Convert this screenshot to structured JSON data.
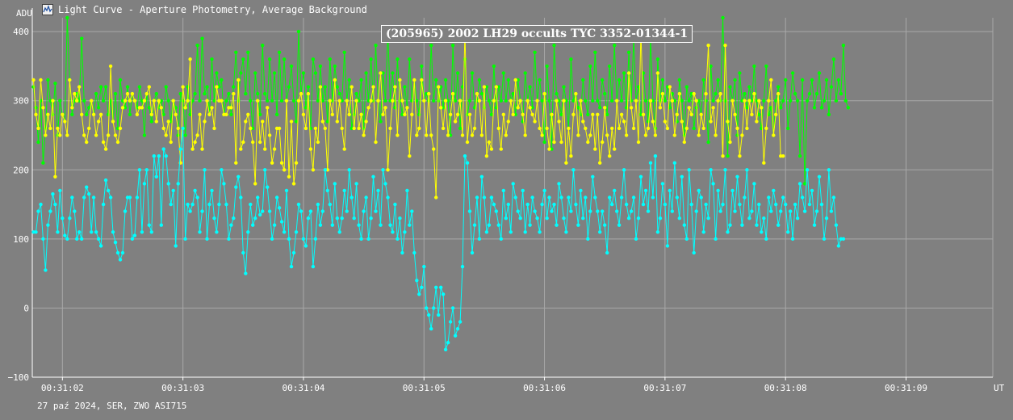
{
  "window": {
    "title": "Light Curve - Aperture Photometry, Average Background",
    "icon": "light-curve-app-icon"
  },
  "footer": "27 paź 2024, SER, ZWO ASI715",
  "chart_data": {
    "type": "line",
    "title": "(205965) 2002 LH29 occults TYC 3352-01344-1",
    "ylabel": "ADU",
    "xlabel": "UT",
    "ylim": [
      -100,
      420
    ],
    "xlim": [
      1.75,
      9.72
    ],
    "yticks": [
      400,
      300,
      200,
      100,
      0,
      -100
    ],
    "xticks": [
      {
        "value": 2,
        "label": "00:31:02"
      },
      {
        "value": 3,
        "label": "00:31:03"
      },
      {
        "value": 4,
        "label": "00:31:04"
      },
      {
        "value": 5,
        "label": "00:31:05"
      },
      {
        "value": 6,
        "label": "00:31:06"
      },
      {
        "value": 7,
        "label": "00:31:07"
      },
      {
        "value": 8,
        "label": "00:31:08"
      },
      {
        "value": 9,
        "label": "00:31:09"
      }
    ],
    "grid": true,
    "x_units": "seconds after 00:31:00 UT",
    "x_start": 1.76,
    "x_step": 0.02,
    "series": [
      {
        "color": "#00ff00",
        "values": [
          320,
          290,
          240,
          300,
          210,
          260,
          330,
          300,
          280,
          325,
          250,
          300,
          280,
          270,
          420,
          330,
          280,
          300,
          310,
          300,
          390,
          300,
          280,
          290,
          300,
          280,
          310,
          290,
          320,
          300,
          320,
          280,
          300,
          270,
          310,
          260,
          330,
          300,
          290,
          320,
          280,
          310,
          300,
          290,
          320,
          300,
          250,
          310,
          290,
          270,
          300,
          310,
          290,
          300,
          280,
          320,
          300,
          270,
          300,
          290,
          250,
          310,
          300,
          250,
          320,
          280,
          300,
          310,
          380,
          300,
          390,
          310,
          320,
          280,
          360,
          300,
          340,
          320,
          330,
          280,
          300,
          310,
          280,
          320,
          370,
          300,
          340,
          360,
          310,
          370,
          300,
          260,
          340,
          310,
          280,
          380,
          310,
          300,
          360,
          300,
          340,
          280,
          370,
          300,
          360,
          300,
          320,
          350,
          300,
          270,
          400,
          310,
          340,
          290,
          320,
          260,
          360,
          340,
          300,
          350,
          300,
          320,
          270,
          360,
          300,
          350,
          320,
          310,
          300,
          370,
          300,
          330,
          260,
          280,
          310,
          300,
          330,
          260,
          340,
          300,
          360,
          300,
          380,
          300,
          270,
          340,
          300,
          400,
          300,
          340,
          290,
          360,
          300,
          280,
          320,
          290,
          360,
          300,
          330,
          300,
          280,
          350,
          300,
          310,
          300,
          380,
          300,
          330,
          300,
          320,
          290,
          330,
          300,
          250,
          380,
          300,
          340,
          260,
          320,
          360,
          280,
          300,
          340,
          290,
          300,
          330,
          310,
          290,
          320,
          300,
          280,
          350,
          290,
          320,
          300,
          340,
          300,
          330,
          300,
          310,
          280,
          330,
          300,
          270,
          340,
          300,
          320,
          290,
          370,
          300,
          330,
          300,
          240,
          350,
          300,
          230,
          380,
          310,
          300,
          280,
          320,
          300,
          260,
          360,
          300,
          310,
          290,
          280,
          330,
          300,
          280,
          350,
          300,
          370,
          300,
          290,
          330,
          310,
          280,
          350,
          300,
          380,
          300,
          330,
          300,
          340,
          290,
          370,
          300,
          390,
          300,
          320,
          280,
          340,
          300,
          270,
          390,
          300,
          260,
          360,
          300,
          330,
          300,
          320,
          290,
          310,
          300,
          270,
          330,
          300,
          250,
          320,
          300,
          310,
          260,
          290,
          300,
          280,
          330,
          300,
          240,
          350,
          300,
          310,
          330,
          300,
          420,
          300,
          220,
          320,
          300,
          330,
          250,
          340,
          300,
          310,
          290,
          320,
          300,
          350,
          300,
          280,
          260,
          300,
          350,
          280,
          290,
          250,
          300,
          320,
          290,
          300,
          330,
          260,
          300,
          340,
          310,
          300,
          220,
          330,
          180,
          300,
          310,
          330,
          290,
          310,
          340,
          290,
          300,
          330,
          280,
          320,
          360,
          300,
          330,
          310,
          380,
          300,
          290
        ]
      },
      {
        "color": "#ffff00",
        "values": [
          330,
          280,
          260,
          330,
          290,
          250,
          280,
          260,
          300,
          190,
          260,
          250,
          280,
          270,
          250,
          330,
          290,
          310,
          300,
          320,
          280,
          250,
          240,
          260,
          300,
          280,
          250,
          270,
          280,
          240,
          230,
          250,
          350,
          270,
          250,
          240,
          260,
          290,
          300,
          310,
          300,
          310,
          300,
          280,
          290,
          290,
          300,
          310,
          320,
          280,
          300,
          270,
          300,
          290,
          260,
          250,
          270,
          240,
          300,
          280,
          260,
          210,
          320,
          290,
          300,
          360,
          230,
          240,
          250,
          280,
          230,
          270,
          300,
          280,
          290,
          260,
          320,
          300,
          300,
          280,
          280,
          290,
          290,
          310,
          210,
          330,
          230,
          240,
          270,
          280,
          260,
          240,
          180,
          300,
          240,
          270,
          230,
          290,
          250,
          210,
          230,
          260,
          260,
          210,
          200,
          300,
          190,
          270,
          180,
          210,
          300,
          310,
          280,
          260,
          310,
          230,
          200,
          260,
          240,
          320,
          270,
          260,
          200,
          300,
          280,
          330,
          270,
          300,
          260,
          230,
          300,
          280,
          320,
          260,
          300,
          260,
          280,
          250,
          270,
          290,
          300,
          320,
          240,
          300,
          340,
          280,
          290,
          200,
          260,
          300,
          320,
          250,
          330,
          300,
          280,
          290,
          220,
          280,
          330,
          250,
          260,
          330,
          300,
          250,
          310,
          250,
          230,
          160,
          320,
          290,
          260,
          300,
          250,
          280,
          310,
          270,
          280,
          300,
          250,
          400,
          240,
          280,
          250,
          260,
          310,
          300,
          250,
          320,
          220,
          240,
          230,
          300,
          320,
          260,
          230,
          280,
          250,
          270,
          300,
          280,
          330,
          290,
          300,
          280,
          250,
          300,
          290,
          280,
          270,
          300,
          260,
          250,
          310,
          260,
          230,
          280,
          240,
          300,
          270,
          240,
          300,
          210,
          260,
          220,
          280,
          310,
          250,
          300,
          270,
          260,
          240,
          250,
          280,
          230,
          280,
          210,
          240,
          290,
          250,
          220,
          260,
          230,
          300,
          260,
          280,
          270,
          250,
          340,
          290,
          260,
          300,
          240,
          400,
          280,
          250,
          260,
          300,
          270,
          250,
          340,
          290,
          310,
          270,
          260,
          320,
          300,
          250,
          280,
          310,
          270,
          240,
          260,
          290,
          280,
          310,
          300,
          250,
          280,
          260,
          310,
          380,
          270,
          290,
          250,
          300,
          310,
          220,
          380,
          270,
          240,
          300,
          280,
          260,
          220,
          250,
          300,
          260,
          300,
          280,
          310,
          270,
          300,
          290,
          210,
          260,
          300,
          330,
          250,
          280,
          310,
          220,
          220
        ]
      },
      {
        "color": "#00ffff",
        "values": [
          110,
          110,
          140,
          150,
          100,
          55,
          120,
          140,
          165,
          150,
          110,
          170,
          130,
          105,
          100,
          130,
          160,
          140,
          100,
          110,
          100,
          160,
          175,
          165,
          110,
          160,
          110,
          100,
          90,
          150,
          185,
          170,
          160,
          110,
          95,
          80,
          70,
          80,
          140,
          160,
          160,
          100,
          105,
          160,
          200,
          110,
          180,
          200,
          120,
          110,
          220,
          190,
          220,
          120,
          230,
          220,
          180,
          150,
          170,
          90,
          180,
          230,
          260,
          100,
          150,
          140,
          150,
          170,
          160,
          110,
          140,
          200,
          100,
          150,
          170,
          130,
          110,
          150,
          200,
          180,
          150,
          100,
          120,
          130,
          175,
          190,
          160,
          80,
          50,
          110,
          150,
          120,
          130,
          160,
          135,
          140,
          200,
          175,
          140,
          100,
          120,
          160,
          145,
          125,
          110,
          170,
          100,
          60,
          80,
          110,
          150,
          140,
          100,
          90,
          130,
          140,
          60,
          100,
          150,
          120,
          140,
          200,
          170,
          150,
          120,
          180,
          130,
          110,
          130,
          170,
          140,
          200,
          160,
          130,
          180,
          120,
          100,
          140,
          160,
          100,
          130,
          190,
          140,
          170,
          120,
          200,
          180,
          160,
          120,
          110,
          150,
          100,
          130,
          80,
          110,
          170,
          120,
          140,
          80,
          40,
          20,
          30,
          60,
          0,
          -10,
          -30,
          0,
          30,
          -10,
          30,
          20,
          -60,
          -50,
          -20,
          0,
          -40,
          -30,
          -20,
          60,
          220,
          210,
          140,
          80,
          120,
          160,
          100,
          190,
          160,
          110,
          120,
          160,
          150,
          140,
          120,
          100,
          170,
          130,
          150,
          110,
          180,
          160,
          140,
          130,
          170,
          110,
          150,
          120,
          160,
          140,
          130,
          110,
          150,
          170,
          130,
          160,
          140,
          150,
          120,
          180,
          160,
          130,
          110,
          160,
          140,
          200,
          150,
          120,
          170,
          130,
          160,
          100,
          140,
          190,
          160,
          140,
          110,
          140,
          120,
          80,
          160,
          150,
          170,
          140,
          120,
          160,
          200,
          150,
          130,
          140,
          160,
          100,
          130,
          190,
          150,
          170,
          140,
          210,
          160,
          220,
          110,
          130,
          180,
          150,
          90,
          170,
          140,
          210,
          160,
          130,
          190,
          120,
          100,
          200,
          150,
          80,
          140,
          170,
          160,
          110,
          150,
          130,
          200,
          180,
          100,
          170,
          140,
          150,
          200,
          110,
          120,
          170,
          140,
          190,
          150,
          120,
          160,
          200,
          130,
          140,
          180,
          120,
          150,
          110,
          130,
          100,
          160,
          140,
          170,
          150,
          120,
          140,
          160,
          150,
          110,
          140,
          100,
          150,
          130,
          180,
          160,
          140,
          200,
          150,
          170,
          120,
          140,
          190,
          150,
          100,
          130,
          200,
          140,
          160,
          120,
          90,
          100,
          100
        ]
      }
    ]
  }
}
